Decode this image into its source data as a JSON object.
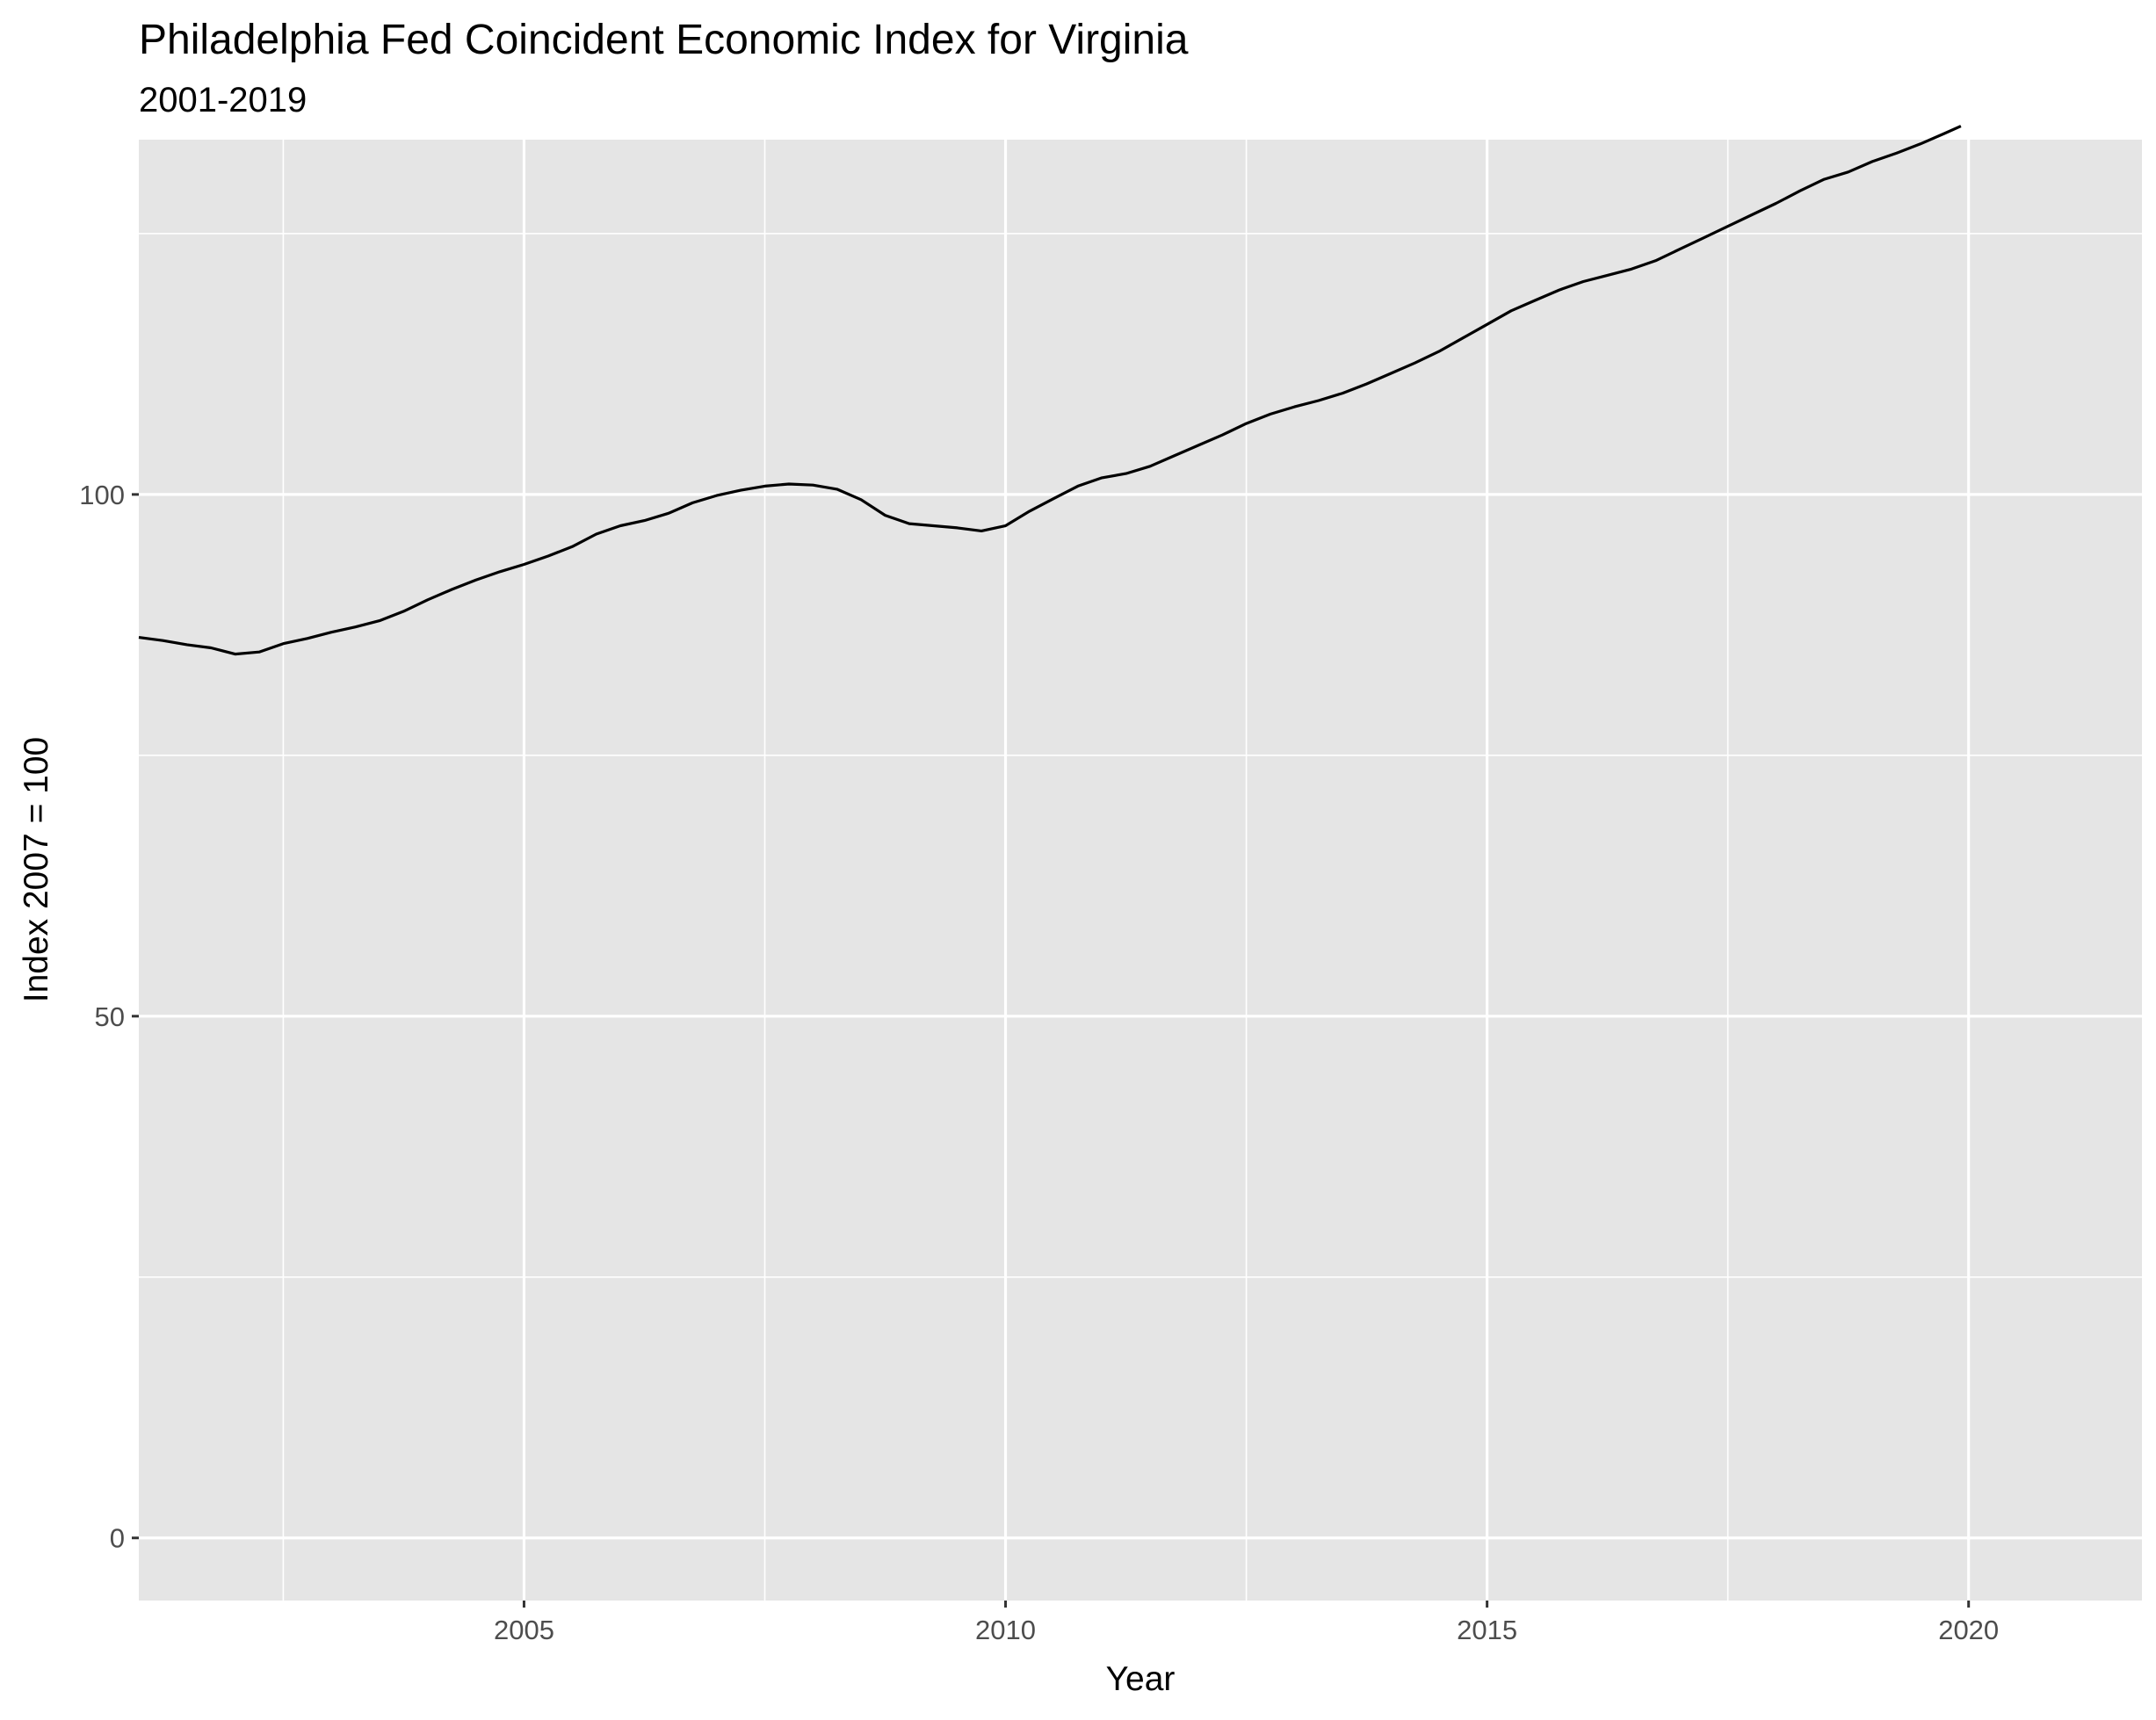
{
  "chart_data": {
    "type": "line",
    "title": "Philadelphia Fed Coincident Economic Index for Virginia",
    "subtitle": "2001-2019",
    "xlabel": "Year",
    "ylabel": "Index 2007 = 100",
    "xlim": [
      2001.0,
      2021.8
    ],
    "ylim": [
      -6,
      134
    ],
    "x_ticks": [
      2005,
      2010,
      2015,
      2020
    ],
    "y_ticks": [
      0,
      50,
      100
    ],
    "grid": true,
    "legend": "none",
    "colors": {
      "panel": "#e5e5e5",
      "grid": "#ffffff",
      "line": "#000000",
      "tick_text": "#4d4d4d"
    },
    "series": [
      {
        "x": [
          2001.0,
          2001.25,
          2001.5,
          2001.75,
          2002.0,
          2002.25,
          2002.5,
          2002.75,
          2003.0,
          2003.25,
          2003.5,
          2003.75,
          2004.0,
          2004.25,
          2004.5,
          2004.75,
          2005.0,
          2005.25,
          2005.5,
          2005.75,
          2006.0,
          2006.25,
          2006.5,
          2006.75,
          2007.0,
          2007.25,
          2007.5,
          2007.75,
          2008.0,
          2008.25,
          2008.5,
          2008.75,
          2009.0,
          2009.25,
          2009.5,
          2009.75,
          2010.0,
          2010.25,
          2010.5,
          2010.75,
          2011.0,
          2011.25,
          2011.5,
          2011.75,
          2012.0,
          2012.25,
          2012.5,
          2012.75,
          2013.0,
          2013.25,
          2013.5,
          2013.75,
          2014.0,
          2014.25,
          2014.5,
          2014.75,
          2015.0,
          2015.25,
          2015.5,
          2015.75,
          2016.0,
          2016.25,
          2016.5,
          2016.75,
          2017.0,
          2017.25,
          2017.5,
          2017.75,
          2018.0,
          2018.25,
          2018.5,
          2018.75,
          2019.0,
          2019.25,
          2019.5,
          2019.75,
          2019.92
        ],
        "values": [
          86.3,
          86.0,
          85.6,
          85.3,
          84.7,
          84.9,
          85.7,
          86.2,
          86.8,
          87.3,
          87.9,
          88.8,
          89.9,
          90.9,
          91.8,
          92.6,
          93.3,
          94.1,
          95.0,
          96.2,
          97.0,
          97.5,
          98.2,
          99.2,
          99.9,
          100.4,
          100.8,
          101.0,
          100.9,
          100.5,
          99.5,
          98.0,
          97.2,
          97.0,
          96.8,
          96.5,
          97.0,
          98.4,
          99.6,
          100.8,
          101.6,
          102.0,
          102.7,
          103.7,
          104.7,
          105.7,
          106.8,
          107.7,
          108.4,
          109.0,
          109.7,
          110.6,
          111.6,
          112.6,
          113.7,
          115.0,
          116.3,
          117.6,
          118.6,
          119.6,
          120.4,
          121.0,
          121.6,
          122.4,
          123.5,
          124.6,
          125.7,
          126.8,
          127.9,
          129.1,
          130.2,
          130.9,
          131.9,
          132.7,
          133.6,
          134.6,
          135.3
        ]
      }
    ]
  }
}
